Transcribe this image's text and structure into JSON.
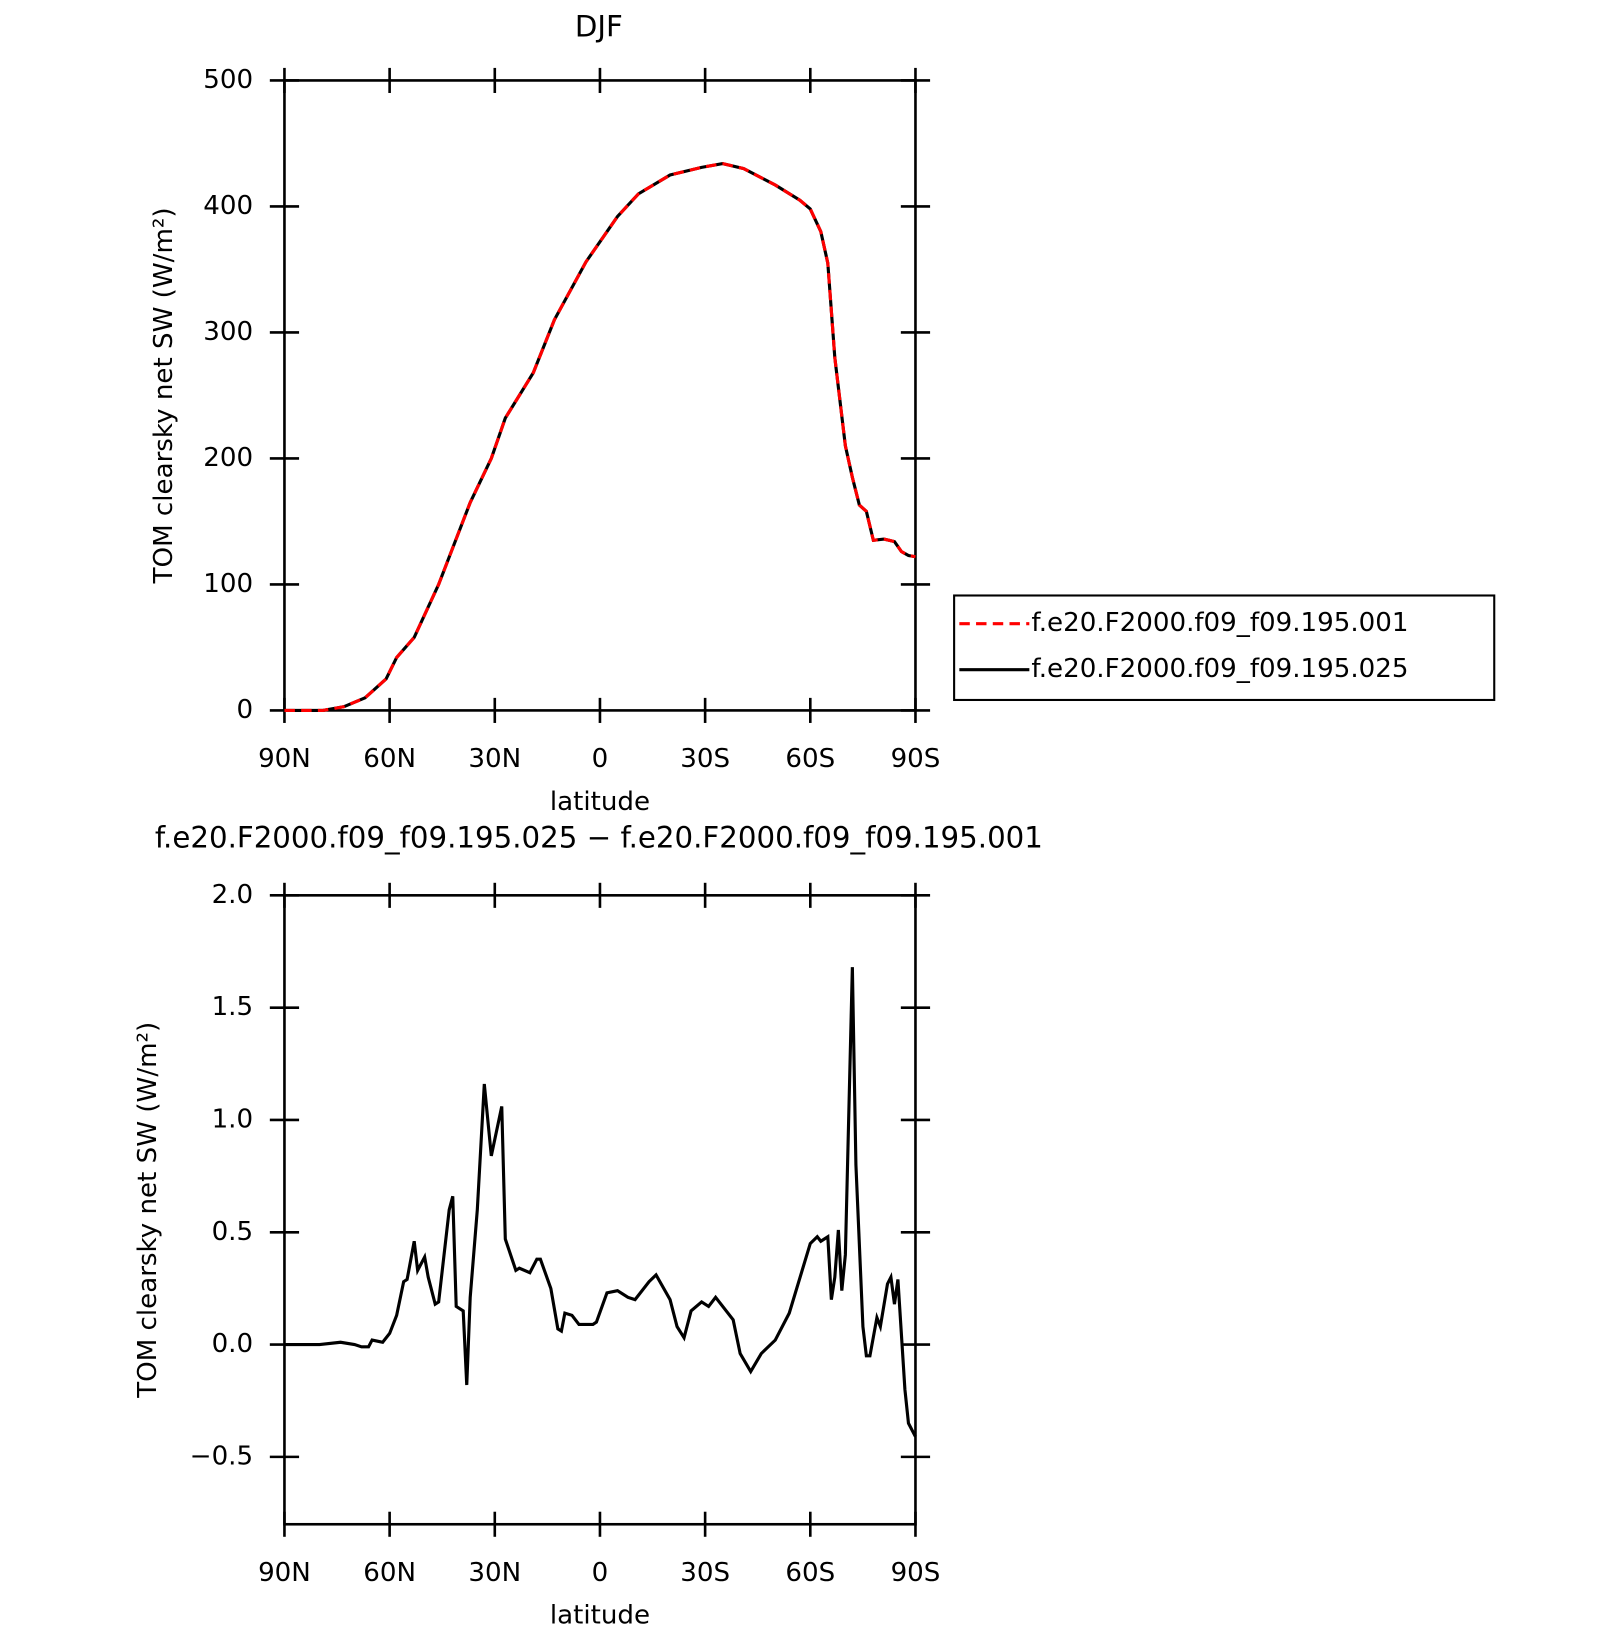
{
  "chart_data": [
    {
      "type": "line",
      "title": "DJF",
      "xlabel": "latitude",
      "ylabel": "TOM clearsky net SW (W/m²)",
      "x": [
        90,
        79,
        73,
        67,
        61,
        58,
        53,
        46,
        37,
        31,
        27,
        19,
        13,
        4,
        -5,
        -11,
        -20,
        -29,
        -35,
        -41,
        -50,
        -57,
        -60,
        -63,
        -65,
        -67,
        -70,
        -72,
        -74,
        -76,
        -78,
        -81,
        -84,
        -86,
        -88,
        -90
      ],
      "series": [
        {
          "name": "f.e20.F2000.f09_f09.195.001",
          "color": "#ff0000",
          "linestyle": "dashed",
          "values": [
            0,
            0,
            3,
            10,
            25,
            42,
            58,
            100,
            165,
            200,
            232,
            268,
            310,
            356,
            392,
            410,
            425,
            431,
            434,
            430,
            417,
            405,
            398,
            380,
            355,
            280,
            210,
            185,
            163,
            158,
            135,
            136,
            134,
            126,
            123,
            122
          ]
        },
        {
          "name": "f.e20.F2000.f09_f09.195.025",
          "color": "#000000",
          "linestyle": "solid",
          "values": [
            0,
            0,
            3,
            10,
            25,
            42,
            58,
            100,
            165,
            200,
            232,
            268,
            310,
            356,
            392,
            410,
            425,
            431,
            434,
            430,
            417,
            405,
            398,
            380,
            355,
            280,
            210,
            185,
            163,
            158,
            135,
            136,
            134,
            126,
            123,
            122
          ]
        }
      ],
      "xlim": [
        90,
        -90
      ],
      "xticks": [
        {
          "value": 90,
          "label": "90N"
        },
        {
          "value": 60,
          "label": "60N"
        },
        {
          "value": 30,
          "label": "30N"
        },
        0,
        {
          "value": -30,
          "label": "30S"
        },
        {
          "value": -60,
          "label": "60S"
        },
        {
          "value": -90,
          "label": "90S"
        }
      ],
      "ylim": [
        0,
        500
      ],
      "yticks": [
        0,
        100,
        200,
        300,
        400,
        500
      ],
      "legend": "right"
    },
    {
      "type": "line",
      "title": "f.e20.F2000.f09_f09.195.025 − f.e20.F2000.f09_f09.195.001",
      "xlabel": "latitude",
      "ylabel": "TOM clearsky net SW (W/m²)",
      "x": [
        90,
        80,
        74,
        70,
        68,
        66,
        65,
        62,
        60,
        58,
        56,
        55,
        53,
        52,
        50,
        49,
        47,
        46,
        43,
        42,
        41,
        39,
        38,
        37,
        35,
        33,
        31,
        28,
        27,
        24,
        23,
        20,
        18,
        17,
        14,
        12,
        11,
        10,
        8,
        6,
        2,
        1,
        -2,
        -5,
        -8,
        -10,
        -14,
        -16,
        -20,
        -22,
        -24,
        -26,
        -29,
        -31,
        -33,
        -38,
        -40,
        -43,
        -46,
        -50,
        -54,
        -60,
        -62,
        -63,
        -65,
        -66,
        -67,
        -68,
        -69,
        -70,
        -72,
        -73,
        -75,
        -76,
        -77,
        -79,
        -80,
        -82,
        -83,
        -84,
        -85,
        -87,
        -88,
        -90
      ],
      "values": [
        0,
        0,
        0.01,
        0,
        -0.01,
        -0.01,
        0.02,
        0.01,
        0.05,
        0.13,
        0.28,
        0.29,
        0.46,
        0.33,
        0.39,
        0.3,
        0.18,
        0.19,
        0.6,
        0.66,
        0.17,
        0.15,
        -0.18,
        0.21,
        0.6,
        1.16,
        0.84,
        1.06,
        0.47,
        0.33,
        0.34,
        0.32,
        0.38,
        0.38,
        0.25,
        0.07,
        0.06,
        0.14,
        0.13,
        0.09,
        0.09,
        0.1,
        0.23,
        0.24,
        0.21,
        0.2,
        0.28,
        0.31,
        0.2,
        0.08,
        0.03,
        0.15,
        0.19,
        0.17,
        0.21,
        0.11,
        -0.04,
        -0.12,
        -0.04,
        0.02,
        0.14,
        0.45,
        0.48,
        0.46,
        0.48,
        0.2,
        0.3,
        0.51,
        0.24,
        0.4,
        1.68,
        0.8,
        0.08,
        -0.05,
        -0.05,
        0.12,
        0.08,
        0.27,
        0.3,
        0.18,
        0.29,
        -0.2,
        -0.35,
        -0.41
      ],
      "color": "#000000",
      "xlim": [
        90,
        -90
      ],
      "xticks": [
        {
          "value": 90,
          "label": "90N"
        },
        {
          "value": 60,
          "label": "60N"
        },
        {
          "value": 30,
          "label": "30N"
        },
        0,
        {
          "value": -30,
          "label": "30S"
        },
        {
          "value": -60,
          "label": "60S"
        },
        {
          "value": -90,
          "label": "90S"
        }
      ],
      "ylim": [
        -0.8,
        2.0
      ],
      "yticks": [
        {
          "value": -0.5,
          "label": "−0.5"
        },
        {
          "value": 0,
          "label": "0.0"
        },
        0.5,
        {
          "value": 1,
          "label": "1.0"
        },
        1.5,
        {
          "value": 2,
          "label": "2.0"
        }
      ]
    }
  ]
}
